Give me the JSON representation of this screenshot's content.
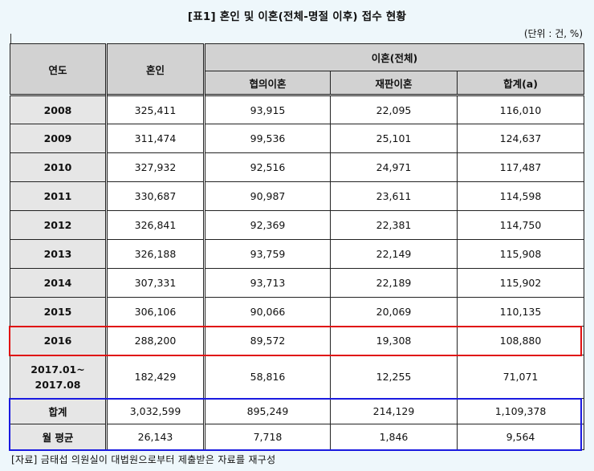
{
  "title": "[표1] 혼인 및 이혼(전체-명절 이후) 접수 현황",
  "unit": "(단위 : 건, %)",
  "headers": {
    "year": "연도",
    "marriage": "혼인",
    "divorce_total": "이혼(전체)",
    "consensual": "협의이혼",
    "judicial": "재판이혼",
    "sum": "합계(a)"
  },
  "rows": [
    {
      "year": "2008",
      "marriage": "325,411",
      "consensual": "93,915",
      "judicial": "22,095",
      "sum": "116,010"
    },
    {
      "year": "2009",
      "marriage": "311,474",
      "consensual": "99,536",
      "judicial": "25,101",
      "sum": "124,637"
    },
    {
      "year": "2010",
      "marriage": "327,932",
      "consensual": "92,516",
      "judicial": "24,971",
      "sum": "117,487"
    },
    {
      "year": "2011",
      "marriage": "330,687",
      "consensual": "90,987",
      "judicial": "23,611",
      "sum": "114,598"
    },
    {
      "year": "2012",
      "marriage": "326,841",
      "consensual": "92,369",
      "judicial": "22,381",
      "sum": "114,750"
    },
    {
      "year": "2013",
      "marriage": "326,188",
      "consensual": "93,759",
      "judicial": "22,149",
      "sum": "115,908"
    },
    {
      "year": "2014",
      "marriage": "307,331",
      "consensual": "93,713",
      "judicial": "22,189",
      "sum": "115,902"
    },
    {
      "year": "2015",
      "marriage": "306,106",
      "consensual": "90,066",
      "judicial": "20,069",
      "sum": "110,135"
    },
    {
      "year": "2016",
      "marriage": "288,200",
      "consensual": "89,572",
      "judicial": "19,308",
      "sum": "108,880"
    },
    {
      "year_line1": "2017.01~",
      "year_line2": "2017.08",
      "marriage": "182,429",
      "consensual": "58,816",
      "judicial": "12,255",
      "sum": "71,071"
    }
  ],
  "totals": [
    {
      "label": "합계",
      "marriage": "3,032,599",
      "consensual": "895,249",
      "judicial": "214,129",
      "sum": "1,109,378"
    },
    {
      "label": "월 평균",
      "marriage": "26,143",
      "consensual": "7,718",
      "judicial": "1,846",
      "sum": "9,564"
    }
  ],
  "source": "[자료] 금태섭 의원실이 대법원으로부터 제출받은 자료를 재구성",
  "colors": {
    "highlight_2016": "#e01010",
    "highlight_totals": "#1a1ae0",
    "header_bg": "#d2d2d2"
  }
}
